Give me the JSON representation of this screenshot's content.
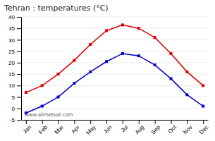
{
  "chart_data": {
    "type": "line",
    "title": "Tehran : temperatures (°C)",
    "categories": [
      "Jan",
      "Feb",
      "Mar",
      "Apr",
      "May",
      "Jun",
      "Jul",
      "Aug",
      "Sep",
      "Oct",
      "Nov",
      "Dec"
    ],
    "series": [
      {
        "color": "#dd0000",
        "marker": "square",
        "line_style": "solid",
        "values": [
          7,
          10,
          15,
          21,
          28,
          34,
          36.5,
          35,
          31,
          24,
          16,
          10
        ]
      },
      {
        "color": "#0000cc",
        "marker": "square",
        "line_style": "solid",
        "values": [
          -2,
          1,
          5,
          11,
          16,
          20.5,
          24,
          23,
          19,
          13,
          6,
          1
        ]
      }
    ],
    "ylim": [
      -5,
      40
    ],
    "yticks": [
      -5,
      0,
      5,
      10,
      15,
      20,
      25,
      30,
      35,
      40
    ],
    "grid": true,
    "annotations": [
      "www.allmetsat.com"
    ]
  }
}
